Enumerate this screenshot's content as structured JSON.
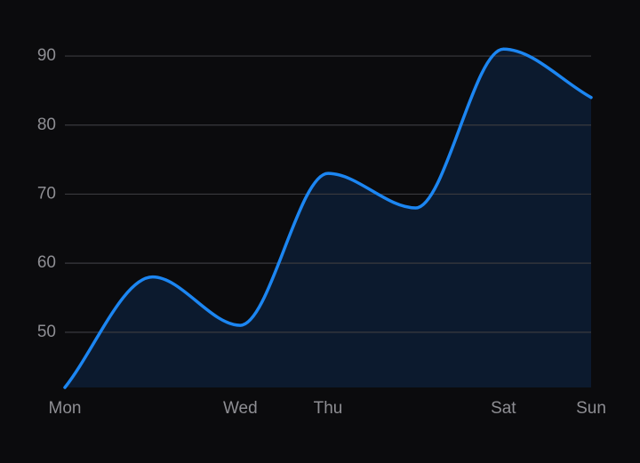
{
  "chart_data": {
    "type": "area",
    "categories": [
      "Mon",
      null,
      "Wed",
      "Thu",
      null,
      "Sat",
      "Sun"
    ],
    "values": [
      42,
      58,
      51,
      73,
      68,
      91,
      84
    ],
    "color": "#1c86f2",
    "fill": "#0c1a2e",
    "ylim": [
      42,
      92
    ],
    "yticks": [
      50,
      60,
      70,
      80,
      90
    ],
    "grid": true
  }
}
